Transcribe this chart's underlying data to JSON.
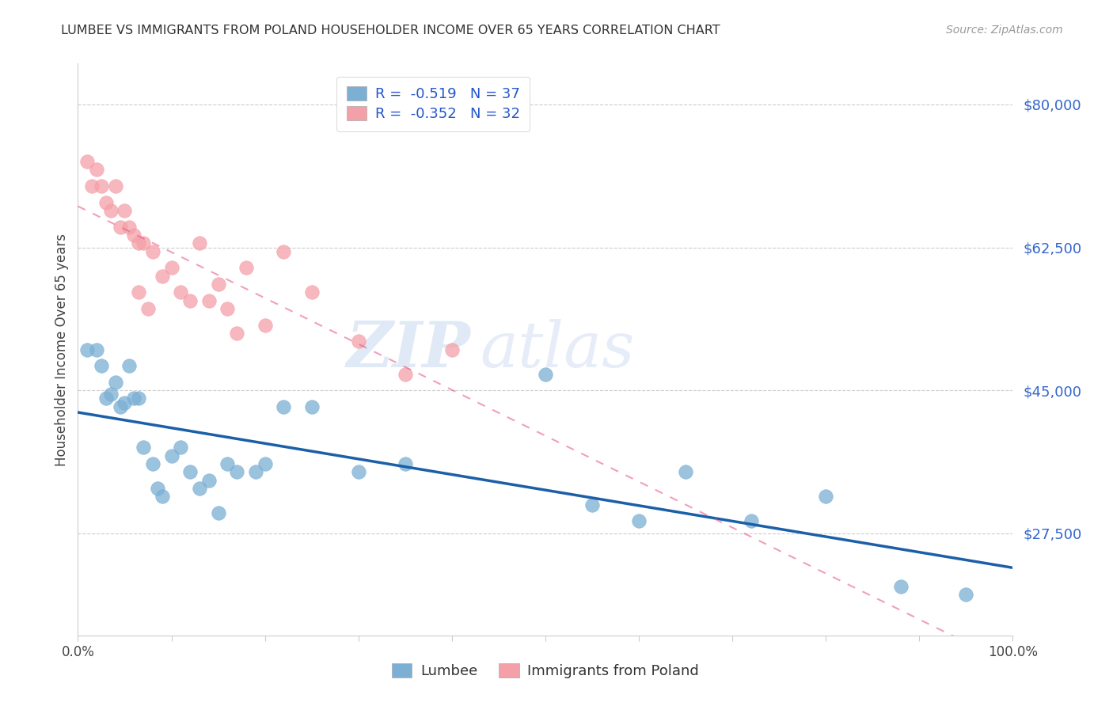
{
  "title": "LUMBEE VS IMMIGRANTS FROM POLAND HOUSEHOLDER INCOME OVER 65 YEARS CORRELATION CHART",
  "source": "Source: ZipAtlas.com",
  "ylabel": "Householder Income Over 65 years",
  "legend_label1": "Lumbee",
  "legend_label2": "Immigrants from Poland",
  "r1": "-0.519",
  "n1": "37",
  "r2": "-0.352",
  "n2": "32",
  "watermark_zip": "ZIP",
  "watermark_atlas": "atlas",
  "ytick_labels": [
    "$80,000",
    "$62,500",
    "$45,000",
    "$27,500"
  ],
  "ytick_values": [
    80000,
    62500,
    45000,
    27500
  ],
  "ymin": 15000,
  "ymax": 85000,
  "xmin": 0.0,
  "xmax": 1.0,
  "color_blue": "#7BAFD4",
  "color_pink": "#F4A0A8",
  "color_blue_line": "#1A5FA8",
  "color_pink_line": "#E8608A",
  "color_grid": "#CCCCCC",
  "lumbee_x": [
    0.01,
    0.02,
    0.025,
    0.03,
    0.035,
    0.04,
    0.045,
    0.05,
    0.055,
    0.06,
    0.065,
    0.07,
    0.08,
    0.085,
    0.09,
    0.1,
    0.11,
    0.12,
    0.13,
    0.14,
    0.15,
    0.16,
    0.17,
    0.19,
    0.2,
    0.22,
    0.25,
    0.3,
    0.35,
    0.5,
    0.55,
    0.6,
    0.65,
    0.72,
    0.8,
    0.88,
    0.95
  ],
  "lumbee_y": [
    50000,
    50000,
    48000,
    44000,
    44500,
    46000,
    43000,
    43500,
    48000,
    44000,
    44000,
    38000,
    36000,
    33000,
    32000,
    37000,
    38000,
    35000,
    33000,
    34000,
    30000,
    36000,
    35000,
    35000,
    36000,
    43000,
    43000,
    35000,
    36000,
    47000,
    31000,
    29000,
    35000,
    29000,
    32000,
    21000,
    20000
  ],
  "poland_x": [
    0.01,
    0.015,
    0.02,
    0.025,
    0.03,
    0.035,
    0.04,
    0.045,
    0.05,
    0.055,
    0.06,
    0.065,
    0.07,
    0.08,
    0.09,
    0.1,
    0.11,
    0.12,
    0.13,
    0.14,
    0.16,
    0.18,
    0.2,
    0.22,
    0.25,
    0.3,
    0.35,
    0.4,
    0.17,
    0.15,
    0.065,
    0.075
  ],
  "poland_y": [
    73000,
    70000,
    72000,
    70000,
    68000,
    67000,
    70000,
    65000,
    67000,
    65000,
    64000,
    63000,
    63000,
    62000,
    59000,
    60000,
    57000,
    56000,
    63000,
    56000,
    55000,
    60000,
    53000,
    62000,
    57000,
    51000,
    47000,
    50000,
    52000,
    58000,
    57000,
    55000
  ]
}
